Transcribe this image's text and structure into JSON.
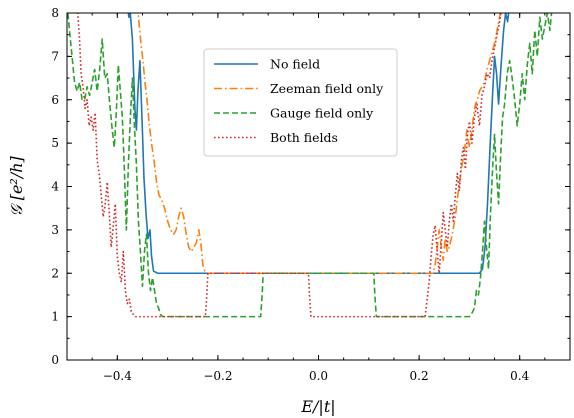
{
  "chart_data": {
    "type": "line",
    "xlabel": "E/|t|",
    "ylabel": "𝒢  [e²/h]",
    "xlim": [
      -0.5,
      0.5
    ],
    "ylim": [
      0,
      8
    ],
    "x_ticks": [
      -0.4,
      -0.2,
      0.0,
      0.2,
      0.4
    ],
    "x_tick_labels": [
      "−0.4",
      "−0.2",
      "0.0",
      "0.2",
      "0.4"
    ],
    "y_ticks": [
      0,
      1,
      2,
      3,
      4,
      5,
      6,
      7,
      8
    ],
    "y_tick_labels": [
      "0",
      "1",
      "2",
      "3",
      "4",
      "5",
      "6",
      "7",
      "8"
    ],
    "legend_position": "upper-center",
    "grid": false,
    "series": [
      {
        "name": "No field",
        "color": "#1f77b4",
        "dash": "solid",
        "points": [
          [
            -0.38,
            8.2
          ],
          [
            -0.377,
            7.9
          ],
          [
            -0.375,
            8.1
          ],
          [
            -0.37,
            7.4
          ],
          [
            -0.365,
            5.8
          ],
          [
            -0.362,
            5.3
          ],
          [
            -0.359,
            6.2
          ],
          [
            -0.355,
            6.9
          ],
          [
            -0.351,
            5.6
          ],
          [
            -0.347,
            4.2
          ],
          [
            -0.343,
            3.4
          ],
          [
            -0.339,
            2.8
          ],
          [
            -0.335,
            3.0
          ],
          [
            -0.332,
            2.4
          ],
          [
            -0.328,
            2.05
          ],
          [
            -0.32,
            2.0
          ],
          [
            0.32,
            2.0
          ],
          [
            0.326,
            2.1
          ],
          [
            0.331,
            2.6
          ],
          [
            0.336,
            3.6
          ],
          [
            0.341,
            4.9
          ],
          [
            0.346,
            6.1
          ],
          [
            0.35,
            7.0
          ],
          [
            0.354,
            6.6
          ],
          [
            0.358,
            5.9
          ],
          [
            0.363,
            6.8
          ],
          [
            0.368,
            7.6
          ],
          [
            0.372,
            8.0
          ],
          [
            0.376,
            7.8
          ],
          [
            0.38,
            8.2
          ]
        ]
      },
      {
        "name": "Zeeman field only",
        "color": "#ff7f0e",
        "dash": "dashdot",
        "points": [
          [
            -0.36,
            8.2
          ],
          [
            -0.357,
            7.8
          ],
          [
            -0.353,
            7.3
          ],
          [
            -0.349,
            6.9
          ],
          [
            -0.345,
            6.4
          ],
          [
            -0.341,
            6.0
          ],
          [
            -0.337,
            5.5
          ],
          [
            -0.332,
            5.0
          ],
          [
            -0.327,
            4.6
          ],
          [
            -0.322,
            4.1
          ],
          [
            -0.317,
            3.8
          ],
          [
            -0.312,
            3.7
          ],
          [
            -0.306,
            3.5
          ],
          [
            -0.3,
            3.2
          ],
          [
            -0.294,
            3.0
          ],
          [
            -0.288,
            2.9
          ],
          [
            -0.283,
            3.0
          ],
          [
            -0.278,
            3.3
          ],
          [
            -0.273,
            3.5
          ],
          [
            -0.268,
            3.3
          ],
          [
            -0.263,
            2.9
          ],
          [
            -0.258,
            2.6
          ],
          [
            -0.253,
            2.5
          ],
          [
            -0.248,
            2.6
          ],
          [
            -0.243,
            2.7
          ],
          [
            -0.238,
            3.0
          ],
          [
            -0.234,
            2.7
          ],
          [
            -0.23,
            2.2
          ],
          [
            -0.226,
            2.05
          ],
          [
            -0.22,
            2.0
          ],
          [
            0.228,
            2.0
          ],
          [
            0.232,
            2.2
          ],
          [
            0.236,
            2.6
          ],
          [
            0.24,
            3.0
          ],
          [
            0.244,
            2.6
          ],
          [
            0.248,
            2.3
          ],
          [
            0.252,
            2.8
          ],
          [
            0.256,
            2.5
          ],
          [
            0.26,
            2.6
          ],
          [
            0.266,
            2.9
          ],
          [
            0.272,
            3.3
          ],
          [
            0.278,
            3.9
          ],
          [
            0.284,
            4.4
          ],
          [
            0.29,
            4.8
          ],
          [
            0.295,
            5.3
          ],
          [
            0.3,
            4.9
          ],
          [
            0.304,
            5.2
          ],
          [
            0.308,
            5.6
          ],
          [
            0.312,
            5.9
          ],
          [
            0.316,
            6.0
          ],
          [
            0.32,
            6.2
          ],
          [
            0.325,
            6.3
          ],
          [
            0.33,
            6.4
          ],
          [
            0.335,
            6.7
          ],
          [
            0.34,
            6.9
          ],
          [
            0.345,
            7.1
          ],
          [
            0.35,
            7.3
          ],
          [
            0.355,
            7.6
          ],
          [
            0.36,
            7.9
          ],
          [
            0.365,
            8.2
          ]
        ]
      },
      {
        "name": "Gauge field only",
        "color": "#2ca02c",
        "dash": "dashed",
        "points": [
          [
            -0.5,
            8.2
          ],
          [
            -0.495,
            7.6
          ],
          [
            -0.49,
            7.0
          ],
          [
            -0.485,
            6.4
          ],
          [
            -0.48,
            6.2
          ],
          [
            -0.475,
            6.4
          ],
          [
            -0.47,
            6.0
          ],
          [
            -0.465,
            6.0
          ],
          [
            -0.46,
            6.3
          ],
          [
            -0.455,
            6.1
          ],
          [
            -0.45,
            6.4
          ],
          [
            -0.445,
            6.7
          ],
          [
            -0.44,
            6.2
          ],
          [
            -0.435,
            6.7
          ],
          [
            -0.43,
            7.4
          ],
          [
            -0.425,
            6.5
          ],
          [
            -0.42,
            6.6
          ],
          [
            -0.415,
            5.9
          ],
          [
            -0.41,
            5.3
          ],
          [
            -0.406,
            4.9
          ],
          [
            -0.402,
            5.7
          ],
          [
            -0.398,
            6.8
          ],
          [
            -0.394,
            6.2
          ],
          [
            -0.39,
            5.6
          ],
          [
            -0.386,
            4.4
          ],
          [
            -0.382,
            3.0
          ],
          [
            -0.378,
            4.5
          ],
          [
            -0.374,
            5.6
          ],
          [
            -0.37,
            6.5
          ],
          [
            -0.366,
            5.4
          ],
          [
            -0.362,
            4.5
          ],
          [
            -0.358,
            3.2
          ],
          [
            -0.354,
            2.5
          ],
          [
            -0.35,
            1.7
          ],
          [
            -0.346,
            2.5
          ],
          [
            -0.342,
            2.9
          ],
          [
            -0.338,
            2.0
          ],
          [
            -0.334,
            1.6
          ],
          [
            -0.33,
            1.9
          ],
          [
            -0.326,
            1.6
          ],
          [
            -0.322,
            1.3
          ],
          [
            -0.318,
            1.2
          ],
          [
            -0.314,
            1.05
          ],
          [
            -0.31,
            1.0
          ],
          [
            -0.115,
            1.0
          ],
          [
            -0.112,
            1.5
          ],
          [
            -0.11,
            2.0
          ],
          [
            0.11,
            2.0
          ],
          [
            0.112,
            1.5
          ],
          [
            0.115,
            1.0
          ],
          [
            0.3,
            1.0
          ],
          [
            0.306,
            1.1
          ],
          [
            0.31,
            1.2
          ],
          [
            0.314,
            1.6
          ],
          [
            0.318,
            1.5
          ],
          [
            0.322,
            1.9
          ],
          [
            0.326,
            2.5
          ],
          [
            0.33,
            3.2
          ],
          [
            0.334,
            2.6
          ],
          [
            0.338,
            2.1
          ],
          [
            0.342,
            3.4
          ],
          [
            0.346,
            4.4
          ],
          [
            0.35,
            5.2
          ],
          [
            0.354,
            4.3
          ],
          [
            0.358,
            3.6
          ],
          [
            0.362,
            4.7
          ],
          [
            0.366,
            5.6
          ],
          [
            0.37,
            5.9
          ],
          [
            0.375,
            6.6
          ],
          [
            0.38,
            6.9
          ],
          [
            0.385,
            6.5
          ],
          [
            0.39,
            6.0
          ],
          [
            0.395,
            5.4
          ],
          [
            0.4,
            5.9
          ],
          [
            0.405,
            6.6
          ],
          [
            0.41,
            6.0
          ],
          [
            0.415,
            6.8
          ],
          [
            0.42,
            7.3
          ],
          [
            0.425,
            6.6
          ],
          [
            0.43,
            7.6
          ],
          [
            0.435,
            7.0
          ],
          [
            0.44,
            7.9
          ],
          [
            0.445,
            7.4
          ],
          [
            0.45,
            7.7
          ],
          [
            0.455,
            8.0
          ],
          [
            0.46,
            7.6
          ],
          [
            0.465,
            8.2
          ]
        ]
      },
      {
        "name": "Both fields",
        "color": "#d62728",
        "dash": "dotted",
        "points": [
          [
            -0.48,
            8.2
          ],
          [
            -0.475,
            7.4
          ],
          [
            -0.472,
            6.6
          ],
          [
            -0.468,
            6.3
          ],
          [
            -0.464,
            5.8
          ],
          [
            -0.46,
            6.0
          ],
          [
            -0.456,
            5.4
          ],
          [
            -0.452,
            5.6
          ],
          [
            -0.448,
            5.3
          ],
          [
            -0.444,
            5.7
          ],
          [
            -0.44,
            4.6
          ],
          [
            -0.436,
            4.3
          ],
          [
            -0.432,
            3.8
          ],
          [
            -0.428,
            3.3
          ],
          [
            -0.424,
            3.6
          ],
          [
            -0.42,
            4.1
          ],
          [
            -0.416,
            3.4
          ],
          [
            -0.412,
            2.6
          ],
          [
            -0.408,
            3.1
          ],
          [
            -0.404,
            3.6
          ],
          [
            -0.4,
            2.4
          ],
          [
            -0.396,
            2.0
          ],
          [
            -0.392,
            1.8
          ],
          [
            -0.388,
            2.5
          ],
          [
            -0.384,
            1.6
          ],
          [
            -0.38,
            1.3
          ],
          [
            -0.376,
            1.4
          ],
          [
            -0.372,
            1.1
          ],
          [
            -0.368,
            1.05
          ],
          [
            -0.364,
            1.0
          ],
          [
            -0.225,
            1.0
          ],
          [
            -0.222,
            1.5
          ],
          [
            -0.22,
            2.0
          ],
          [
            -0.02,
            2.0
          ],
          [
            -0.018,
            1.5
          ],
          [
            -0.015,
            1.0
          ],
          [
            0.212,
            1.0
          ],
          [
            0.216,
            1.4
          ],
          [
            0.22,
            1.8
          ],
          [
            0.224,
            2.4
          ],
          [
            0.228,
            2.9
          ],
          [
            0.232,
            3.1
          ],
          [
            0.236,
            2.5
          ],
          [
            0.24,
            2.0
          ],
          [
            0.244,
            2.7
          ],
          [
            0.248,
            3.4
          ],
          [
            0.252,
            3.0
          ],
          [
            0.256,
            2.6
          ],
          [
            0.26,
            3.2
          ],
          [
            0.264,
            3.6
          ],
          [
            0.268,
            3.2
          ],
          [
            0.272,
            3.8
          ],
          [
            0.276,
            4.3
          ],
          [
            0.28,
            3.9
          ],
          [
            0.284,
            4.6
          ],
          [
            0.288,
            4.9
          ],
          [
            0.292,
            4.4
          ],
          [
            0.296,
            5.2
          ],
          [
            0.3,
            5.5
          ],
          [
            0.305,
            5.0
          ],
          [
            0.31,
            5.6
          ],
          [
            0.315,
            5.9
          ],
          [
            0.32,
            5.4
          ],
          [
            0.325,
            6.1
          ],
          [
            0.33,
            6.3
          ],
          [
            0.335,
            6.6
          ],
          [
            0.34,
            6.5
          ],
          [
            0.345,
            6.9
          ],
          [
            0.35,
            7.2
          ],
          [
            0.355,
            7.5
          ],
          [
            0.36,
            7.8
          ],
          [
            0.365,
            8.2
          ]
        ]
      }
    ]
  }
}
